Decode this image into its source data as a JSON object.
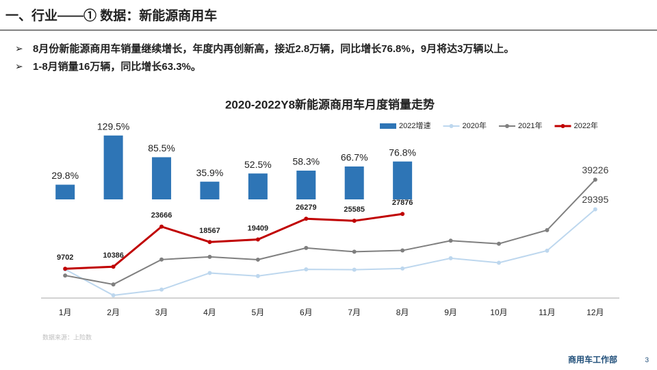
{
  "header": {
    "title": "一、行业——① 数据：新能源商用车"
  },
  "bullets": [
    "8月份新能源商用车销量继续增长，年度内再创新高，接近2.8万辆，同比增长76.8%，9月将达3万辆以上。",
    "1-8月销量16万辆，同比增长63.3%。"
  ],
  "chart_data": {
    "type": "bar-line",
    "title": "2020-2022Y8新能源商用车月度销量走势",
    "categories": [
      "1月",
      "2月",
      "3月",
      "4月",
      "5月",
      "6月",
      "7月",
      "8月",
      "9月",
      "10月",
      "11月",
      "12月"
    ],
    "ylim": [
      0,
      42000
    ],
    "y2lim": [
      0,
      150
    ],
    "grid": false,
    "legend": "top-right",
    "series": [
      {
        "name": "2022增速",
        "type": "bar",
        "axis": "y2",
        "color": "#2e75b6",
        "values": [
          29.8,
          129.5,
          85.5,
          35.9,
          52.5,
          58.3,
          66.7,
          76.8,
          null,
          null,
          null,
          null
        ],
        "value_labels": [
          "29.8%",
          "129.5%",
          "85.5%",
          "35.9%",
          "52.5%",
          "58.3%",
          "66.7%",
          "76.8%",
          null,
          null,
          null,
          null
        ]
      },
      {
        "name": "2020年",
        "type": "line",
        "color": "#bdd7ee",
        "values": [
          9500,
          900,
          2800,
          8300,
          7300,
          9500,
          9400,
          9800,
          13200,
          11700,
          15700,
          29395
        ]
      },
      {
        "name": "2021年",
        "type": "line",
        "color": "#7f7f7f",
        "values": [
          7475,
          4525,
          12758,
          13662,
          12727,
          16601,
          15348,
          15766,
          19000,
          18000,
          22500,
          39226
        ]
      },
      {
        "name": "2022年",
        "type": "line",
        "color": "#c00000",
        "values": [
          9702,
          10386,
          23666,
          18567,
          19409,
          26279,
          25585,
          27876,
          null,
          null,
          null,
          null
        ]
      }
    ],
    "source": "数据来源：上险数"
  },
  "footer": {
    "department": "商用车工作部",
    "page": "3"
  }
}
